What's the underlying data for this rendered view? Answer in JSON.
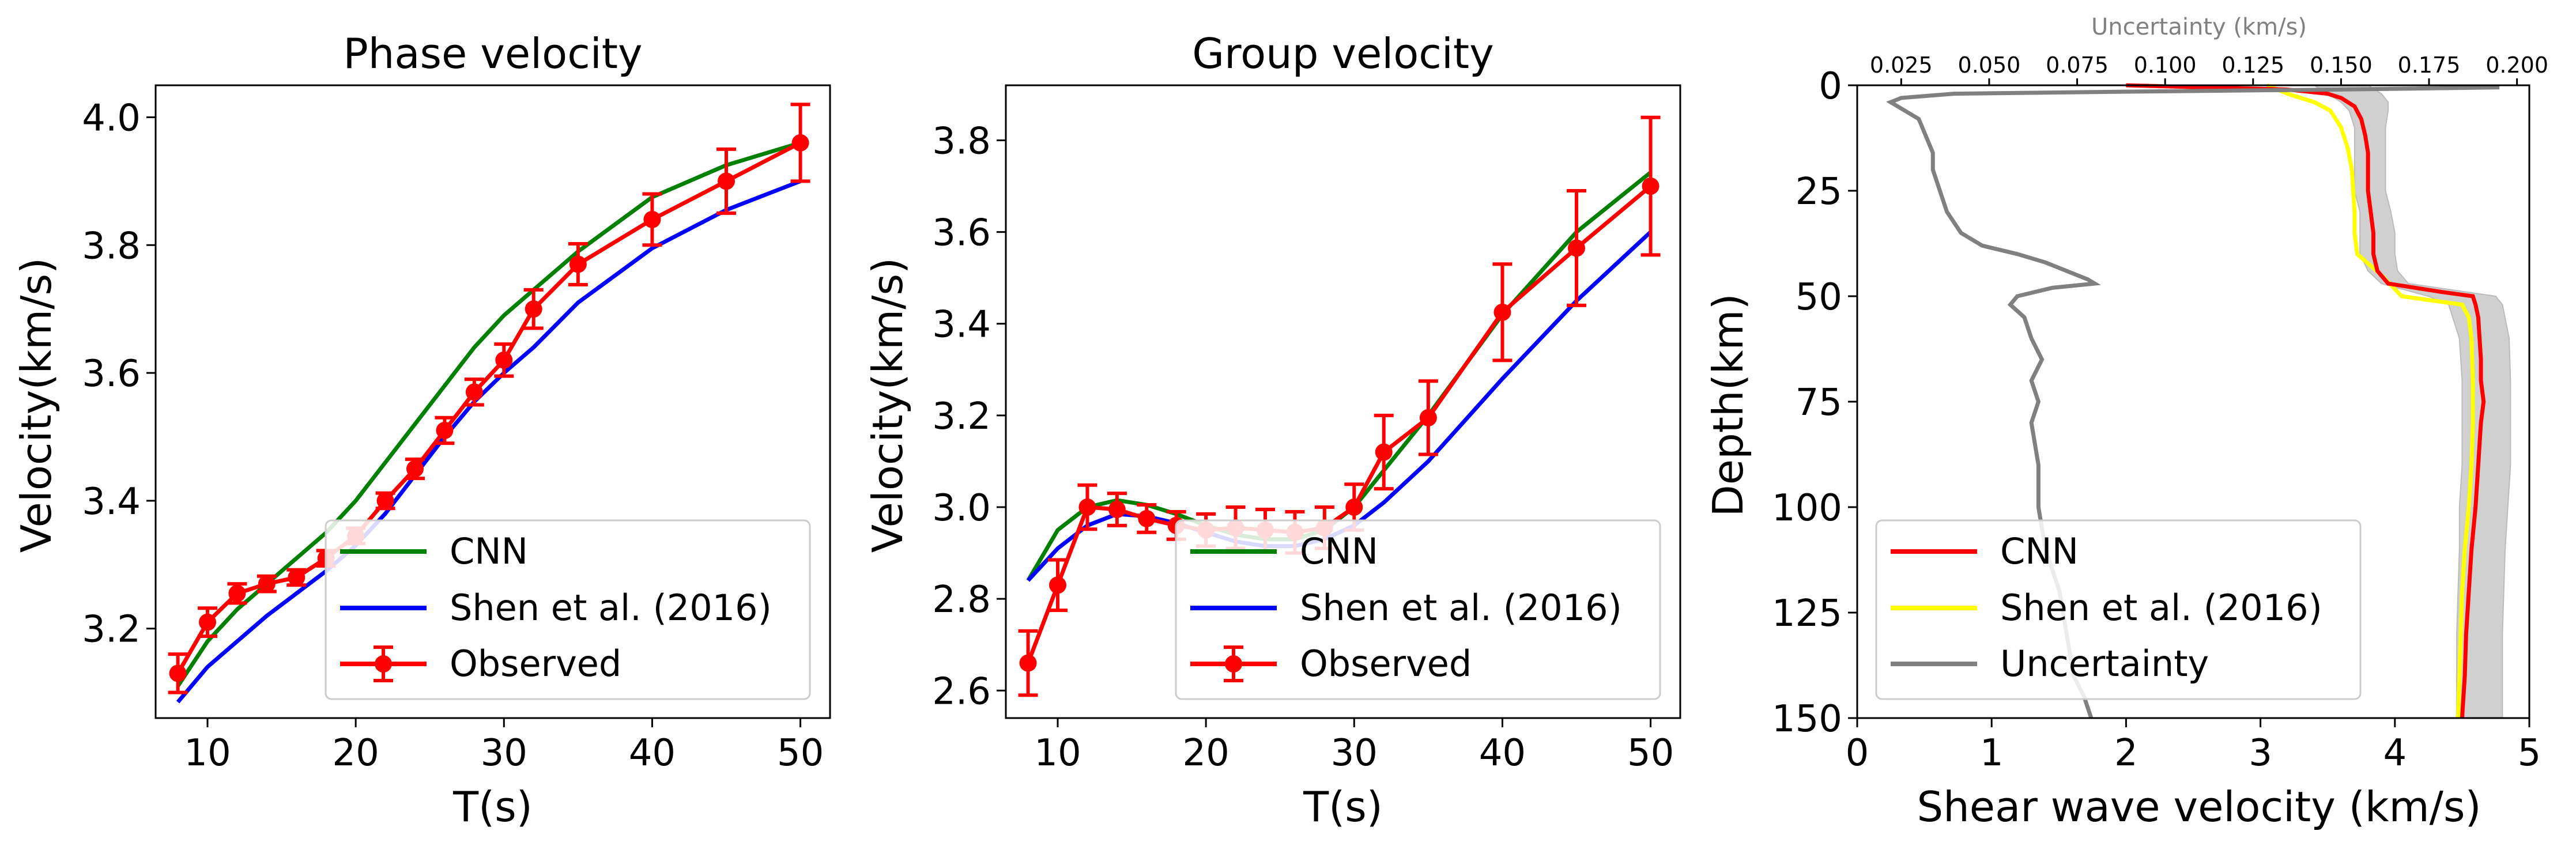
{
  "chart_data": [
    {
      "type": "line",
      "title": "Phase velocity",
      "xlabel": "T(s)",
      "ylabel": "Velocity(km/s)",
      "xlim": [
        6.5,
        52
      ],
      "ylim": [
        3.06,
        4.05
      ],
      "xticks": [
        10,
        20,
        30,
        40,
        50
      ],
      "yticks": [
        3.2,
        3.4,
        3.6,
        3.8,
        4.0
      ],
      "xtick_labels": [
        "10",
        "20",
        "30",
        "40",
        "50"
      ],
      "ytick_labels": [
        "3.2",
        "3.4",
        "3.6",
        "3.8",
        "4.0"
      ],
      "legend_position": "lower-right",
      "series": [
        {
          "name": "CNN",
          "color": "#008000",
          "x": [
            8,
            10,
            12,
            14,
            16,
            18,
            20,
            22,
            24,
            26,
            28,
            30,
            32,
            35,
            40,
            45,
            50
          ],
          "y": [
            3.11,
            3.18,
            3.23,
            3.27,
            3.31,
            3.35,
            3.4,
            3.46,
            3.52,
            3.58,
            3.64,
            3.69,
            3.73,
            3.79,
            3.875,
            3.925,
            3.96
          ]
        },
        {
          "name": "Shen et al. (2016)",
          "color": "#0000ff",
          "x": [
            8,
            10,
            12,
            14,
            16,
            18,
            20,
            22,
            24,
            26,
            28,
            30,
            32,
            35,
            40,
            45,
            50
          ],
          "y": [
            3.085,
            3.14,
            3.18,
            3.22,
            3.255,
            3.29,
            3.33,
            3.38,
            3.44,
            3.5,
            3.555,
            3.6,
            3.64,
            3.71,
            3.795,
            3.855,
            3.9
          ]
        },
        {
          "name": "Observed",
          "color": "#ff0000",
          "x": [
            8,
            10,
            12,
            14,
            16,
            18,
            20,
            22,
            24,
            26,
            28,
            30,
            32,
            35,
            40,
            45,
            50
          ],
          "y": [
            3.13,
            3.21,
            3.255,
            3.27,
            3.28,
            3.31,
            3.345,
            3.4,
            3.45,
            3.51,
            3.57,
            3.62,
            3.7,
            3.77,
            3.84,
            3.9,
            3.96
          ],
          "err": [
            0.03,
            0.022,
            0.015,
            0.012,
            0.012,
            0.012,
            0.012,
            0.012,
            0.015,
            0.02,
            0.02,
            0.025,
            0.03,
            0.032,
            0.04,
            0.05,
            0.06
          ]
        }
      ]
    },
    {
      "type": "line",
      "title": "Group velocity",
      "xlabel": "T(s)",
      "ylabel": "Velocity(km/s)",
      "xlim": [
        6.5,
        52
      ],
      "ylim": [
        2.54,
        3.92
      ],
      "xticks": [
        10,
        20,
        30,
        40,
        50
      ],
      "yticks": [
        2.6,
        2.8,
        3.0,
        3.2,
        3.4,
        3.6,
        3.8
      ],
      "xtick_labels": [
        "10",
        "20",
        "30",
        "40",
        "50"
      ],
      "ytick_labels": [
        "2.6",
        "2.8",
        "3.0",
        "3.2",
        "3.4",
        "3.6",
        "3.8"
      ],
      "legend_position": "lower-right",
      "series": [
        {
          "name": "CNN",
          "color": "#008000",
          "x": [
            8,
            10,
            12,
            14,
            16,
            18,
            20,
            22,
            24,
            26,
            28,
            30,
            32,
            35,
            40,
            45,
            50
          ],
          "y": [
            2.84,
            2.95,
            3.0,
            3.015,
            3.005,
            2.985,
            2.96,
            2.94,
            2.93,
            2.93,
            2.95,
            3.0,
            3.08,
            3.2,
            3.42,
            3.6,
            3.73
          ]
        },
        {
          "name": "Shen et al. (2016)",
          "color": "#0000ff",
          "x": [
            8,
            10,
            12,
            14,
            16,
            18,
            20,
            22,
            24,
            26,
            28,
            30,
            32,
            35,
            40,
            45,
            50
          ],
          "y": [
            2.84,
            2.91,
            2.96,
            2.985,
            2.98,
            2.965,
            2.945,
            2.925,
            2.915,
            2.915,
            2.93,
            2.96,
            3.01,
            3.1,
            3.28,
            3.45,
            3.6
          ]
        },
        {
          "name": "Observed",
          "color": "#ff0000",
          "x": [
            8,
            10,
            12,
            14,
            16,
            18,
            20,
            22,
            24,
            26,
            28,
            30,
            32,
            35,
            40,
            45,
            50
          ],
          "y": [
            2.66,
            2.83,
            3.0,
            2.995,
            2.975,
            2.96,
            2.95,
            2.955,
            2.95,
            2.945,
            2.955,
            3.0,
            3.12,
            3.195,
            3.425,
            3.565,
            3.7
          ],
          "err": [
            0.07,
            0.055,
            0.048,
            0.035,
            0.03,
            0.03,
            0.035,
            0.045,
            0.045,
            0.045,
            0.045,
            0.05,
            0.08,
            0.08,
            0.105,
            0.125,
            0.15
          ]
        }
      ]
    },
    {
      "type": "line",
      "xlabel": "Shear wave velocity (km/s)",
      "ylabel": "Depth(km)",
      "top_xlabel": "Uncertainty (km/s)",
      "xlim": [
        0,
        5
      ],
      "ylim": [
        150,
        0
      ],
      "top_xlim": [
        0.0125,
        0.2035
      ],
      "xticks": [
        0,
        1,
        2,
        3,
        4,
        5
      ],
      "yticks": [
        0,
        25,
        50,
        75,
        100,
        125,
        150
      ],
      "top_xticks": [
        0.025,
        0.05,
        0.075,
        0.1,
        0.125,
        0.15,
        0.175,
        0.2
      ],
      "xtick_labels": [
        "0",
        "1",
        "2",
        "3",
        "4",
        "5"
      ],
      "ytick_labels": [
        "0",
        "25",
        "50",
        "75",
        "100",
        "125",
        "150"
      ],
      "top_xtick_labels": [
        "0.025",
        "0.050",
        "0.075",
        "0.100",
        "0.125",
        "0.150",
        "0.175",
        "0.200"
      ],
      "legend_position": "lower-left",
      "band": {
        "color": "#d0d0d0",
        "depth": [
          0,
          2,
          4,
          6,
          10,
          15,
          20,
          25,
          30,
          35,
          40,
          44,
          47,
          50,
          52,
          60,
          70,
          80,
          90,
          100,
          110,
          120,
          130,
          140,
          150
        ],
        "vs_lower": [
          3.4,
          3.5,
          3.6,
          3.66,
          3.7,
          3.7,
          3.7,
          3.7,
          3.74,
          3.74,
          3.74,
          3.8,
          3.9,
          4.25,
          4.4,
          4.48,
          4.5,
          4.5,
          4.5,
          4.48,
          4.48,
          4.47,
          4.46,
          4.46,
          4.46
        ],
        "vs_upper": [
          3.8,
          3.9,
          3.95,
          3.95,
          3.93,
          3.93,
          3.93,
          3.93,
          3.97,
          4.0,
          4.0,
          4.02,
          4.1,
          4.75,
          4.8,
          4.85,
          4.86,
          4.86,
          4.86,
          4.84,
          4.82,
          4.81,
          4.8,
          4.8,
          4.8
        ]
      },
      "series": [
        {
          "name": "CNN",
          "color": "#ff0000",
          "depth": [
            0,
            1,
            2,
            3,
            5,
            8,
            12,
            16,
            20,
            25,
            30,
            35,
            40,
            44,
            47,
            49,
            50,
            52,
            55,
            60,
            65,
            70,
            75,
            80,
            90,
            100,
            110,
            120,
            130,
            140,
            150
          ],
          "vs": [
            2.0,
            3.2,
            3.5,
            3.6,
            3.7,
            3.75,
            3.78,
            3.8,
            3.8,
            3.8,
            3.82,
            3.84,
            3.84,
            3.87,
            3.95,
            4.35,
            4.58,
            4.6,
            4.62,
            4.63,
            4.64,
            4.64,
            4.66,
            4.64,
            4.62,
            4.6,
            4.57,
            4.55,
            4.53,
            4.52,
            4.5
          ]
        },
        {
          "name": "Shen et al. (2016)",
          "color": "#ffff00",
          "depth": [
            0,
            2,
            4,
            6,
            10,
            15,
            20,
            25,
            30,
            35,
            40,
            45,
            50,
            52,
            55,
            60,
            70,
            80,
            90,
            100,
            110,
            120,
            130,
            140,
            150
          ],
          "vs": [
            3.05,
            3.2,
            3.4,
            3.52,
            3.6,
            3.65,
            3.68,
            3.69,
            3.7,
            3.7,
            3.72,
            3.9,
            4.05,
            4.5,
            4.55,
            4.57,
            4.58,
            4.58,
            4.57,
            4.55,
            4.52,
            4.5,
            4.49,
            4.48,
            4.47
          ]
        },
        {
          "name": "Uncertainty",
          "color": "#808080",
          "axis": "top",
          "depth": [
            0.5,
            1.0,
            1.5,
            2,
            3,
            4,
            5,
            8,
            12,
            16,
            20,
            25,
            30,
            35,
            38,
            40,
            42,
            44,
            46,
            47,
            48,
            50,
            52,
            55,
            60,
            65,
            70,
            75,
            80,
            90,
            100,
            110,
            120,
            130,
            140,
            145,
            150
          ],
          "uncertainty": [
            0.195,
            0.15,
            0.09,
            0.04,
            0.025,
            0.022,
            0.024,
            0.03,
            0.032,
            0.034,
            0.034,
            0.036,
            0.038,
            0.042,
            0.048,
            0.058,
            0.066,
            0.072,
            0.078,
            0.08,
            0.068,
            0.058,
            0.056,
            0.06,
            0.062,
            0.065,
            0.062,
            0.064,
            0.062,
            0.064,
            0.064,
            0.066,
            0.07,
            0.072,
            0.074,
            0.077,
            0.079
          ]
        }
      ]
    }
  ]
}
